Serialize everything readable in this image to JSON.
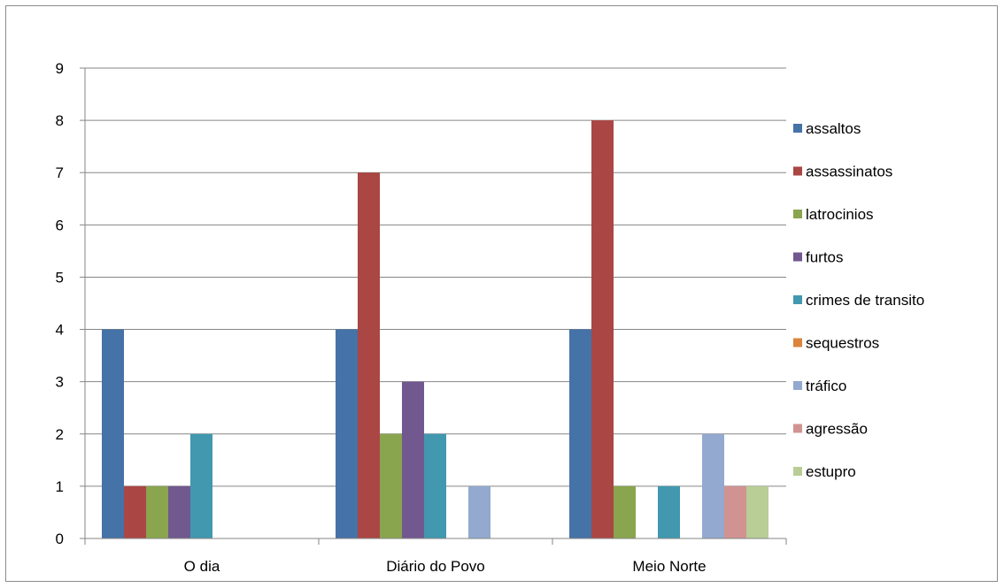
{
  "chart_data": {
    "type": "bar",
    "title": "",
    "xlabel": "",
    "ylabel": "",
    "ylim": [
      0,
      9
    ],
    "yticks": [
      0,
      1,
      2,
      3,
      4,
      5,
      6,
      7,
      8,
      9
    ],
    "grid": true,
    "legend_position": "right",
    "categories": [
      "O dia",
      "Diário do Povo",
      "Meio Norte"
    ],
    "series": [
      {
        "name": "assaltos",
        "color": "#4572A7",
        "values": [
          4,
          4,
          4
        ]
      },
      {
        "name": "assassinatos",
        "color": "#AA4643",
        "values": [
          1,
          7,
          8
        ]
      },
      {
        "name": "latrocinios",
        "color": "#89A54E",
        "values": [
          1,
          2,
          1
        ]
      },
      {
        "name": "furtos",
        "color": "#71588F",
        "values": [
          1,
          3,
          0
        ]
      },
      {
        "name": "crimes de transito",
        "color": "#4198AF",
        "values": [
          2,
          2,
          1
        ]
      },
      {
        "name": "sequestros",
        "color": "#DB843D",
        "values": [
          0,
          0,
          0
        ]
      },
      {
        "name": "tráfico",
        "color": "#93A9CF",
        "values": [
          0,
          1,
          2
        ]
      },
      {
        "name": "agressão",
        "color": "#D19392",
        "values": [
          0,
          0,
          1
        ]
      },
      {
        "name": "estupro",
        "color": "#B9CD96",
        "values": [
          0,
          0,
          1
        ]
      }
    ]
  }
}
